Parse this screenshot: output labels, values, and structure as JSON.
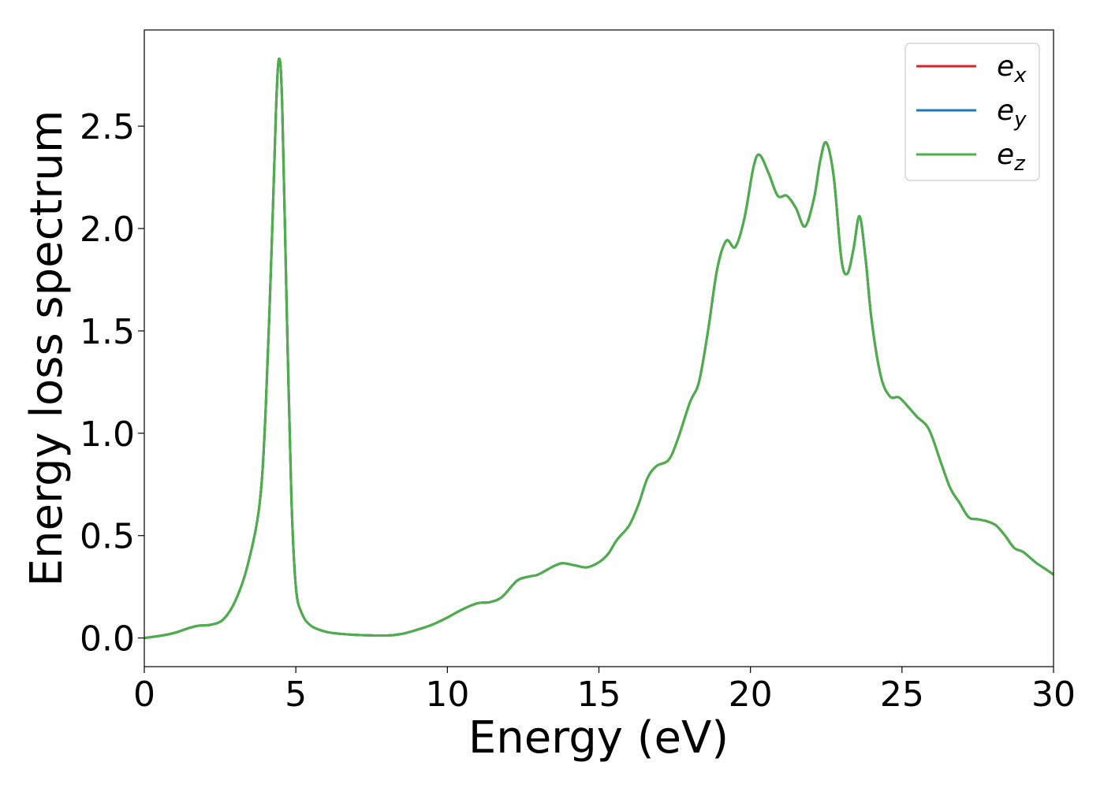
{
  "chart_data": {
    "type": "line",
    "title": "",
    "xlabel": "Energy (eV)",
    "ylabel": "Energy loss spectrum",
    "xlim": [
      0,
      30
    ],
    "ylim": [
      -0.14,
      2.97
    ],
    "xticks": [
      0,
      5,
      10,
      15,
      20,
      25,
      30
    ],
    "xtick_labels": [
      "0",
      "5",
      "10",
      "15",
      "20",
      "25",
      "30"
    ],
    "yticks": [
      0.0,
      0.5,
      1.0,
      1.5,
      2.0,
      2.5
    ],
    "ytick_labels": [
      "0.0",
      "0.5",
      "1.0",
      "1.5",
      "2.0",
      "2.5"
    ],
    "grid": false,
    "legend_position": "top-right",
    "legend": [
      {
        "base": "e",
        "sub": "x",
        "color": "#d62728"
      },
      {
        "base": "e",
        "sub": "y",
        "color": "#1f77b4"
      },
      {
        "base": "e",
        "sub": "z",
        "color": "#4daf4a"
      }
    ],
    "series_points": [
      [
        0,
        0.0
      ],
      [
        0.5,
        0.01
      ],
      [
        1.0,
        0.025
      ],
      [
        1.5,
        0.05
      ],
      [
        1.8,
        0.06
      ],
      [
        2.2,
        0.065
      ],
      [
        2.6,
        0.09
      ],
      [
        3.0,
        0.18
      ],
      [
        3.4,
        0.35
      ],
      [
        3.8,
        0.65
      ],
      [
        4.0,
        1.1
      ],
      [
        4.2,
        1.9
      ],
      [
        4.35,
        2.6
      ],
      [
        4.45,
        2.83
      ],
      [
        4.55,
        2.6
      ],
      [
        4.7,
        1.6
      ],
      [
        4.85,
        0.7
      ],
      [
        5.0,
        0.25
      ],
      [
        5.2,
        0.12
      ],
      [
        5.5,
        0.06
      ],
      [
        6.0,
        0.03
      ],
      [
        6.5,
        0.02
      ],
      [
        7.0,
        0.015
      ],
      [
        8.0,
        0.012
      ],
      [
        8.5,
        0.02
      ],
      [
        9.0,
        0.04
      ],
      [
        9.5,
        0.065
      ],
      [
        10.0,
        0.1
      ],
      [
        10.5,
        0.14
      ],
      [
        11.0,
        0.17
      ],
      [
        11.4,
        0.175
      ],
      [
        11.8,
        0.2
      ],
      [
        12.3,
        0.28
      ],
      [
        12.7,
        0.3
      ],
      [
        13.0,
        0.31
      ],
      [
        13.5,
        0.35
      ],
      [
        13.8,
        0.365
      ],
      [
        14.2,
        0.355
      ],
      [
        14.6,
        0.345
      ],
      [
        15.0,
        0.37
      ],
      [
        15.3,
        0.41
      ],
      [
        15.6,
        0.48
      ],
      [
        16.0,
        0.55
      ],
      [
        16.3,
        0.65
      ],
      [
        16.6,
        0.78
      ],
      [
        16.9,
        0.84
      ],
      [
        17.3,
        0.87
      ],
      [
        17.6,
        0.97
      ],
      [
        18.0,
        1.15
      ],
      [
        18.3,
        1.25
      ],
      [
        18.6,
        1.5
      ],
      [
        18.9,
        1.8
      ],
      [
        19.2,
        1.94
      ],
      [
        19.5,
        1.91
      ],
      [
        19.8,
        2.05
      ],
      [
        20.1,
        2.3
      ],
      [
        20.3,
        2.36
      ],
      [
        20.6,
        2.27
      ],
      [
        20.9,
        2.16
      ],
      [
        21.2,
        2.16
      ],
      [
        21.5,
        2.1
      ],
      [
        21.8,
        2.01
      ],
      [
        22.1,
        2.15
      ],
      [
        22.3,
        2.33
      ],
      [
        22.5,
        2.42
      ],
      [
        22.75,
        2.25
      ],
      [
        23.0,
        1.85
      ],
      [
        23.2,
        1.78
      ],
      [
        23.4,
        1.9
      ],
      [
        23.6,
        2.06
      ],
      [
        23.8,
        1.85
      ],
      [
        24.0,
        1.55
      ],
      [
        24.3,
        1.28
      ],
      [
        24.6,
        1.18
      ],
      [
        24.9,
        1.175
      ],
      [
        25.2,
        1.13
      ],
      [
        25.5,
        1.08
      ],
      [
        25.8,
        1.04
      ],
      [
        26.0,
        0.98
      ],
      [
        26.3,
        0.85
      ],
      [
        26.6,
        0.73
      ],
      [
        26.9,
        0.66
      ],
      [
        27.2,
        0.59
      ],
      [
        27.5,
        0.58
      ],
      [
        27.8,
        0.57
      ],
      [
        28.1,
        0.55
      ],
      [
        28.4,
        0.5
      ],
      [
        28.7,
        0.44
      ],
      [
        29.0,
        0.42
      ],
      [
        29.4,
        0.37
      ],
      [
        29.7,
        0.34
      ],
      [
        30.0,
        0.31
      ]
    ]
  }
}
